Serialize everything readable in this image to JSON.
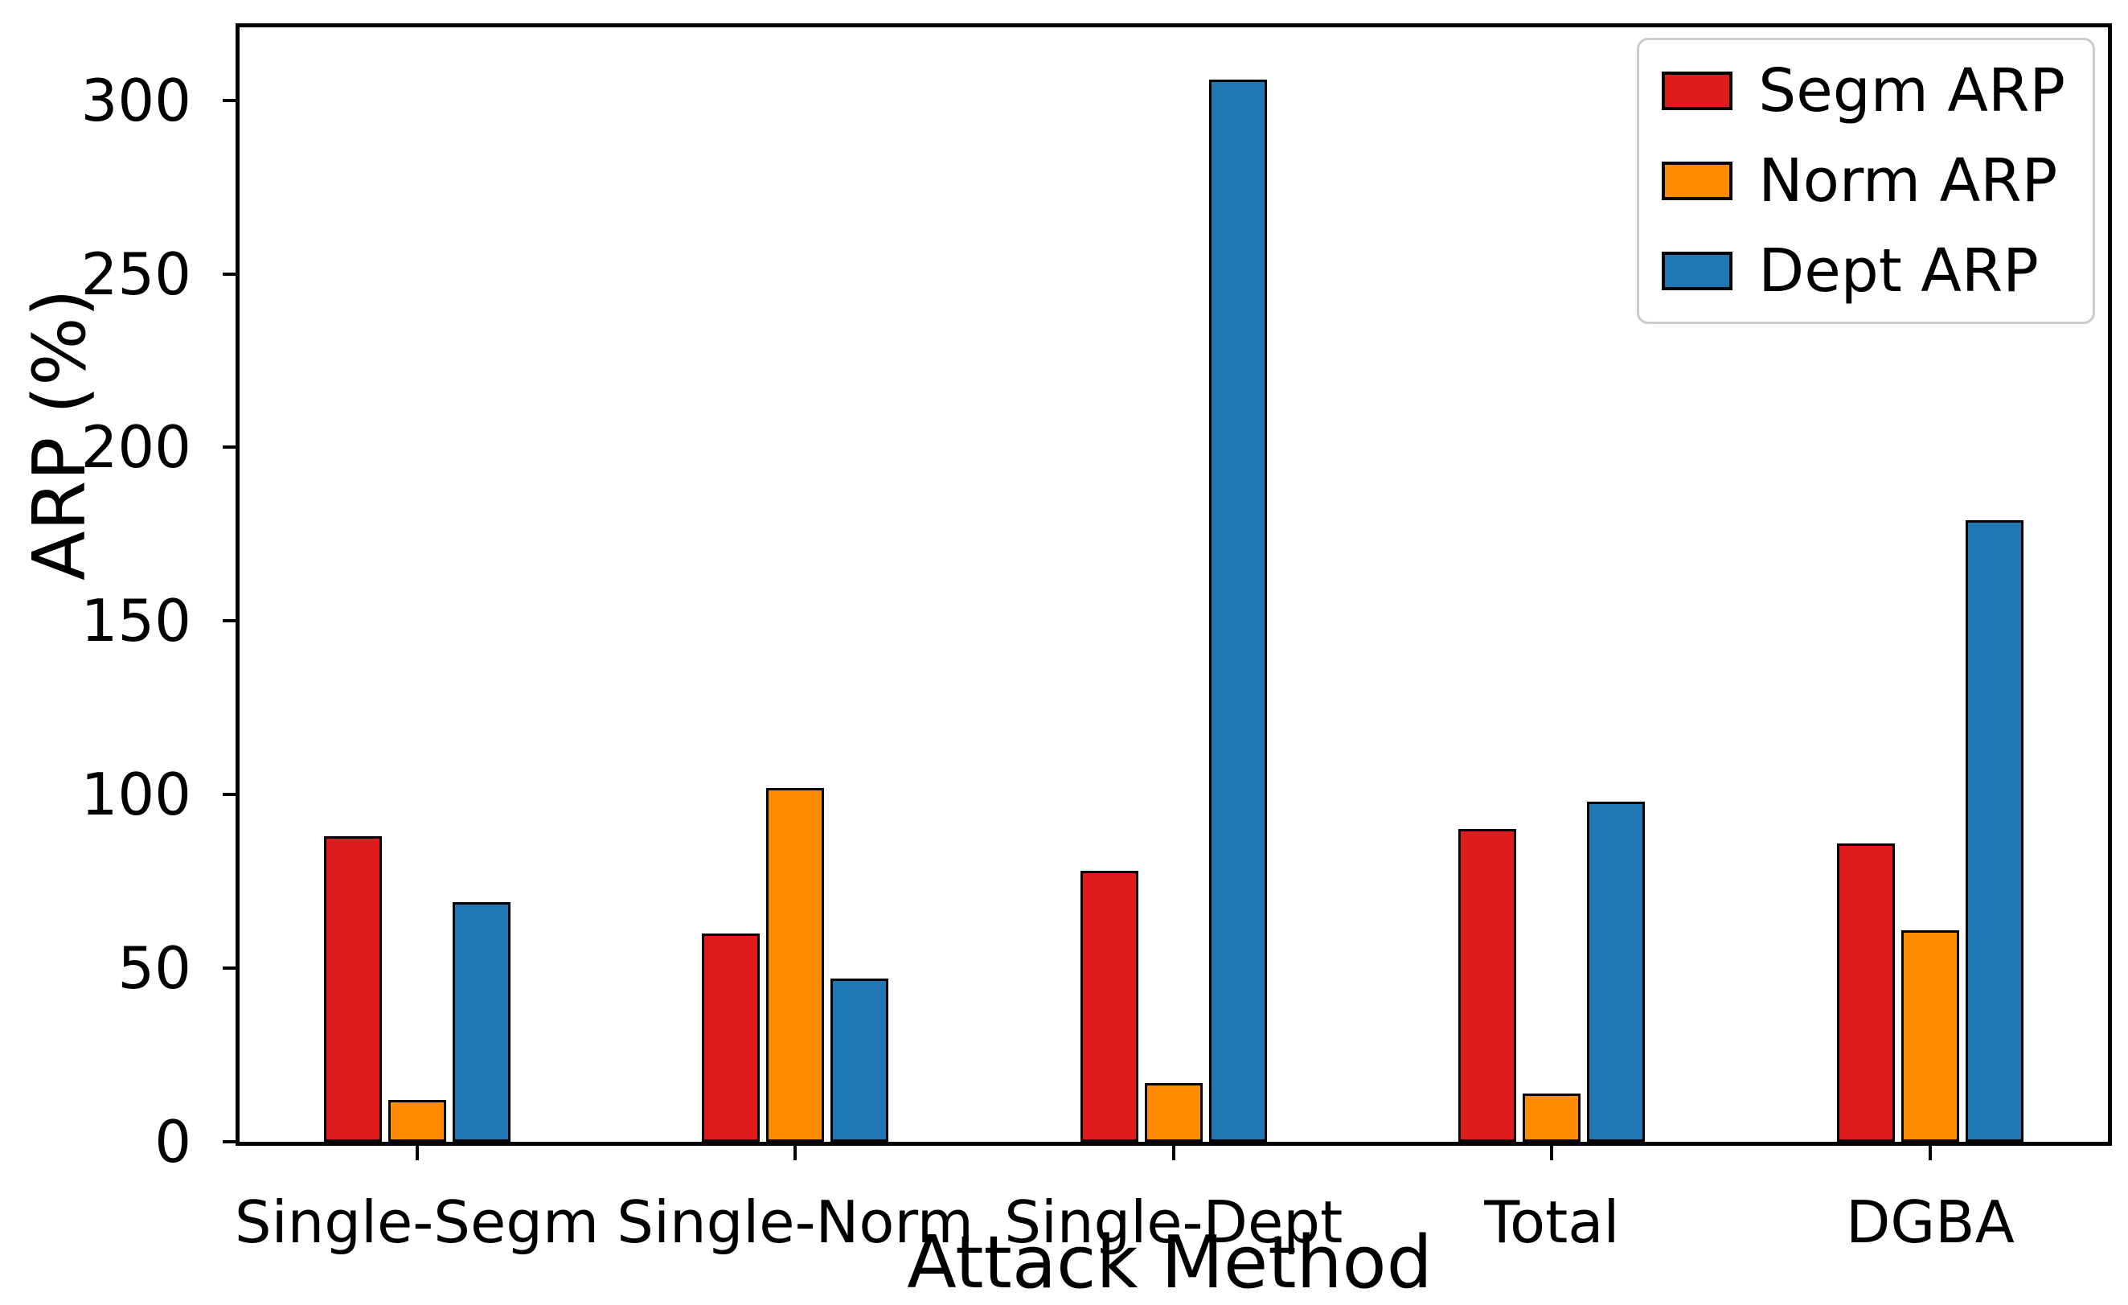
{
  "chart_data": {
    "type": "bar",
    "title": "",
    "xlabel": "Attack Method",
    "ylabel": "ARP (%)",
    "categories": [
      "Single-Segm",
      "Single-Norm",
      "Single-Dept",
      "Total",
      "DGBA"
    ],
    "series": [
      {
        "name": "Segm ARP",
        "color": "#e01b1d",
        "values": [
          88,
          60,
          78,
          90,
          86
        ]
      },
      {
        "name": "Norm ARP",
        "color": "#ff8c00",
        "values": [
          12,
          102,
          17,
          14,
          61
        ]
      },
      {
        "name": "Dept ARP",
        "color": "#1f77b4",
        "values": [
          69,
          47,
          306,
          98,
          179
        ]
      }
    ],
    "yticks": [
      0,
      50,
      100,
      150,
      200,
      250,
      300
    ],
    "ylim": [
      0,
      321
    ],
    "grid": false,
    "legend_position": "upper right",
    "bar_edge_color": "#000000",
    "background_color": "#ffffff"
  }
}
